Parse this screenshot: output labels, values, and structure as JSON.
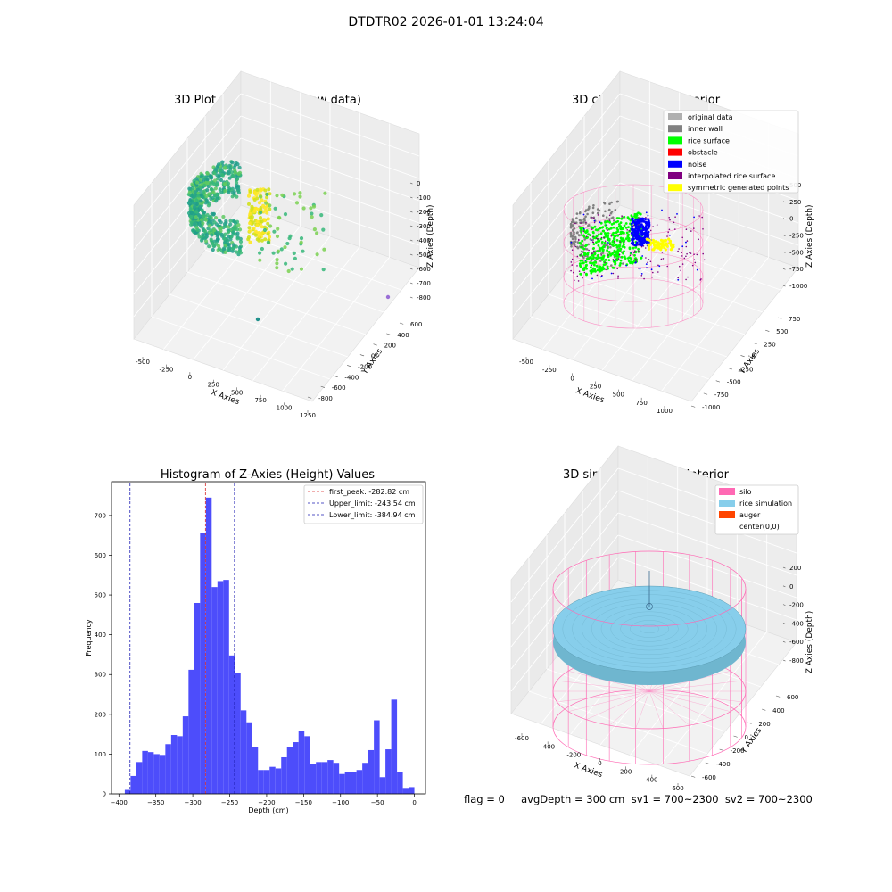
{
  "figure": {
    "suptitle": "DTDTR02 2026-01-01 13:24:04",
    "status_text": "flag = 0     avgDepth = 300 cm  sv1 = 700~2300  sv2 = 700~2300"
  },
  "colors": {
    "histogram_bar": "#4d4dfb",
    "first_peak": "#d62728",
    "limit_line": "#1f1fb4",
    "silo": "#ff69b4",
    "rice_sim": "#87ceeb",
    "auger": "#ff4500",
    "original_data": "#b0b0b0",
    "inner_wall": "#808080",
    "rice_surface": "#00ff00",
    "obstacle": "#ff0000",
    "noise": "#0000ff",
    "interpolated": "#800080",
    "symmetric": "#ffff00"
  },
  "chart_data": [
    {
      "type": "scatter",
      "title": "3D Plot of Silo Interior(row data)",
      "xlabel": "X Axies",
      "ylabel": "Y Axies",
      "zlabel": "Z Axies (Depth)",
      "x_ticks": [
        "-500",
        "-250",
        "0",
        "250",
        "500",
        "750",
        "1000",
        "1250"
      ],
      "y_ticks": [
        "-800",
        "-600",
        "-400",
        "-200",
        "0",
        "200",
        "400",
        "600"
      ],
      "z_ticks": [
        "-800",
        "-700",
        "-600",
        "-500",
        "-400",
        "-300",
        "-200",
        "-100",
        "0"
      ]
    },
    {
      "type": "scatter",
      "title": "3D classify of Silo Interior",
      "xlabel": "X Axies",
      "ylabel": "Y Axies",
      "zlabel": "Z Axies (Depth)",
      "x_ticks": [
        "-500",
        "-250",
        "0",
        "250",
        "500",
        "750",
        "1000"
      ],
      "y_ticks": [
        "-1000",
        "-750",
        "-500",
        "-250",
        "0",
        "250",
        "500",
        "750"
      ],
      "z_ticks": [
        "-1000",
        "-750",
        "-500",
        "-250",
        "0",
        "250",
        "500"
      ],
      "legend": [
        "original data",
        "inner wall",
        "rice surface",
        "obstacle",
        "noise",
        "interpolated rice surface",
        "symmetric generated points"
      ],
      "legend_position": "top-right"
    },
    {
      "type": "bar",
      "title": "Histogram of Z-Axies (Height) Values",
      "xlabel": "Depth (cm)",
      "ylabel": "Frequency",
      "xlim": [
        -410,
        15
      ],
      "ylim": [
        0,
        785
      ],
      "x_ticks": [
        -400,
        -350,
        -300,
        -250,
        -200,
        -150,
        -100,
        -50,
        0
      ],
      "y_ticks": [
        0,
        100,
        200,
        300,
        400,
        500,
        600,
        700
      ],
      "bin_start": -392,
      "bin_width": 7.84,
      "values": [
        10,
        45,
        80,
        108,
        105,
        100,
        98,
        125,
        148,
        145,
        195,
        312,
        480,
        655,
        745,
        520,
        535,
        538,
        348,
        305,
        210,
        180,
        118,
        60,
        60,
        68,
        64,
        92,
        118,
        130,
        157,
        145,
        75,
        80,
        80,
        85,
        78,
        50,
        55,
        55,
        60,
        78,
        110,
        185,
        42,
        112,
        237,
        55,
        15,
        17
      ],
      "lines": [
        {
          "label": "first_peak: -282.82 cm",
          "value": -282.82,
          "color": "#d62728"
        },
        {
          "label": "Upper_limit: -243.54 cm",
          "value": -243.54,
          "color": "#1f1fb4"
        },
        {
          "label": "Lower_limit: -384.94 cm",
          "value": -384.94,
          "color": "#1f1fb4"
        }
      ],
      "legend_position": "top-right"
    },
    {
      "type": "scatter",
      "title": "3D simulation of Silo Interior",
      "xlabel": "X Axies",
      "ylabel": "Y Axies",
      "zlabel": "Z Axies (Depth)",
      "x_ticks": [
        "-600",
        "-400",
        "-200",
        "0",
        "200",
        "400",
        "600"
      ],
      "y_ticks": [
        "-600",
        "-400",
        "-200",
        "0",
        "200",
        "400",
        "600"
      ],
      "z_ticks": [
        "-800",
        "-600",
        "-400",
        "-200",
        "0",
        "200"
      ],
      "legend": [
        "silo",
        "rice simulation",
        "auger",
        "center(0,0)"
      ],
      "legend_position": "top-right"
    }
  ]
}
